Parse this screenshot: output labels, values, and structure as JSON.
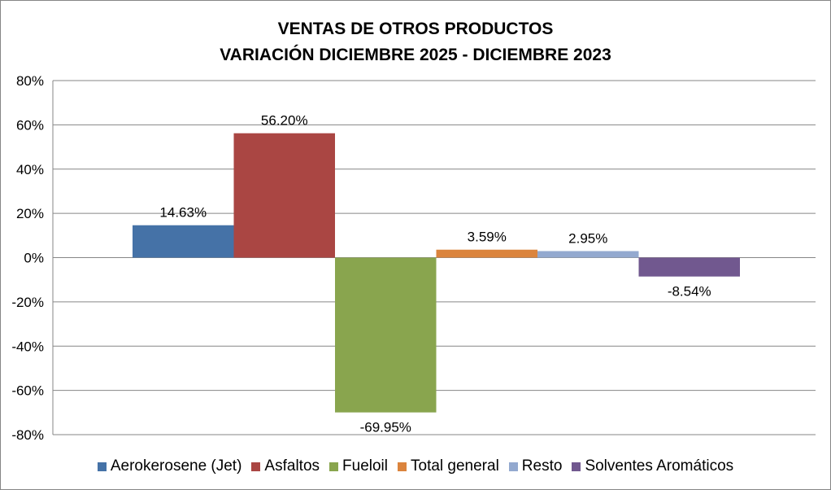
{
  "chart_data": {
    "type": "bar",
    "title": [
      "VENTAS DE OTROS PRODUCTOS",
      "VARIACIÓN DICIEMBRE 2025 - DICIEMBRE 2023"
    ],
    "xlabel": "",
    "ylabel": "",
    "ylim": [
      -80,
      80
    ],
    "yticks": [
      80,
      60,
      40,
      20,
      0,
      -20,
      -40,
      -60,
      -80
    ],
    "ytick_labels": [
      "80%",
      "60%",
      "40%",
      "20%",
      "0%",
      "-20%",
      "-40%",
      "-60%",
      "-80%"
    ],
    "grid": true,
    "legend_position": "bottom",
    "series": [
      {
        "name": "Aerokerosene (Jet)",
        "value": 14.63,
        "label": "14.63%",
        "color": "#4572A7"
      },
      {
        "name": "Asfaltos",
        "value": 56.2,
        "label": "56.20%",
        "color": "#AA4643"
      },
      {
        "name": "Fueloil",
        "value": -69.95,
        "label": "-69.95%",
        "color": "#89A54E"
      },
      {
        "name": "Total general",
        "value": 3.59,
        "label": "3.59%",
        "color": "#DB843D"
      },
      {
        "name": "Resto",
        "value": 2.95,
        "label": "2.95%",
        "color": "#93A9CF"
      },
      {
        "name": "Solventes Aromáticos",
        "value": -8.54,
        "label": "-8.54%",
        "color": "#71588F"
      }
    ]
  }
}
